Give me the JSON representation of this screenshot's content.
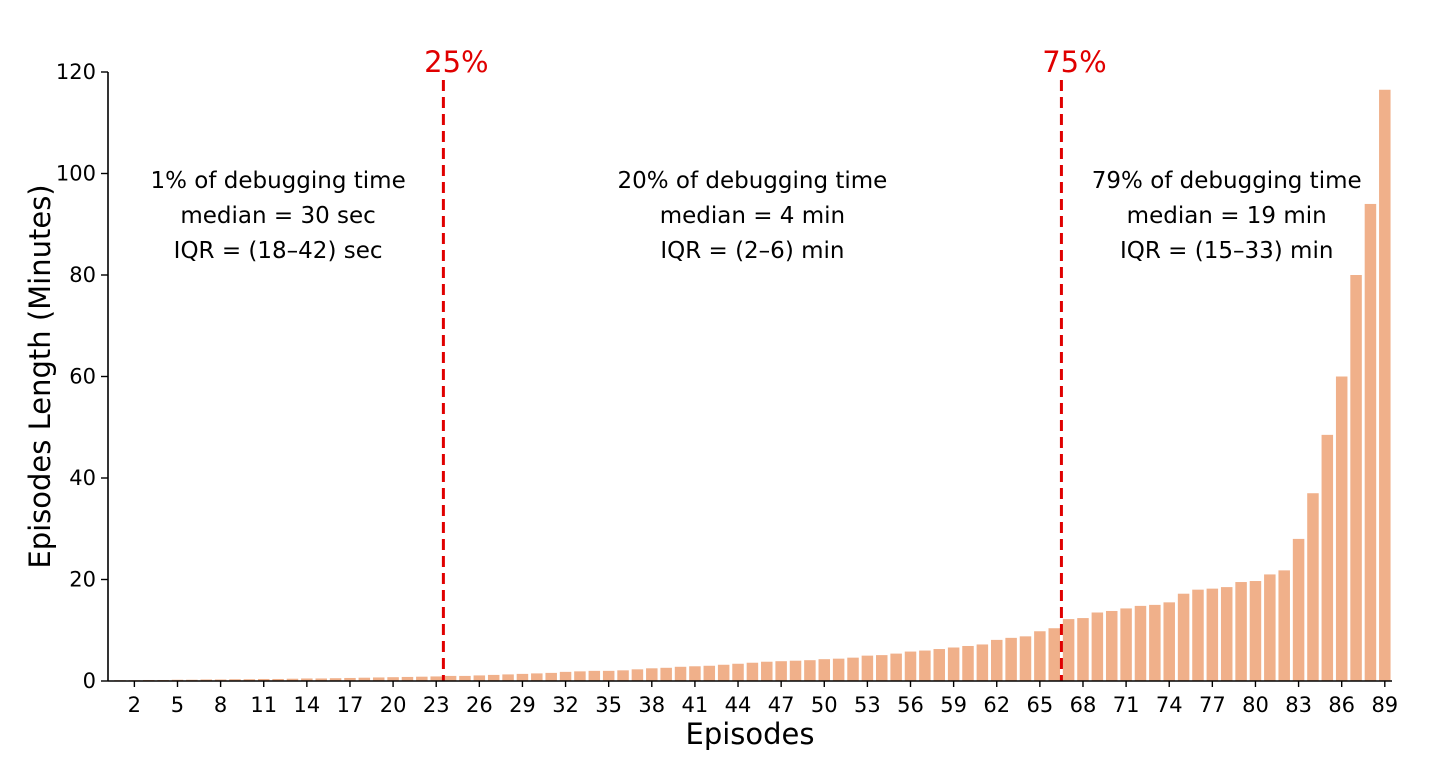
{
  "chart_data": {
    "type": "bar",
    "xlabel": "Episodes",
    "ylabel": "Episodes Length (Minutes)",
    "ylim": [
      0,
      120
    ],
    "yticks": [
      0,
      20,
      40,
      60,
      80,
      100,
      120
    ],
    "xticks": [
      2,
      5,
      8,
      11,
      14,
      17,
      20,
      23,
      26,
      29,
      32,
      35,
      38,
      41,
      44,
      47,
      50,
      53,
      56,
      59,
      62,
      65,
      68,
      71,
      74,
      77,
      80,
      83,
      86,
      89
    ],
    "bar_color": "#f0b08a",
    "episodes": [
      1,
      2,
      3,
      4,
      5,
      6,
      7,
      8,
      9,
      10,
      11,
      12,
      13,
      14,
      15,
      16,
      17,
      18,
      19,
      20,
      21,
      22,
      23,
      24,
      25,
      26,
      27,
      28,
      29,
      30,
      31,
      32,
      33,
      34,
      35,
      36,
      37,
      38,
      39,
      40,
      41,
      42,
      43,
      44,
      45,
      46,
      47,
      48,
      49,
      50,
      51,
      52,
      53,
      54,
      55,
      56,
      57,
      58,
      59,
      60,
      61,
      62,
      63,
      64,
      65,
      66,
      67,
      68,
      69,
      70,
      71,
      72,
      73,
      74,
      75,
      76,
      77,
      78,
      79,
      80,
      81,
      82,
      83,
      84,
      85,
      86,
      87,
      88,
      89
    ],
    "values": [
      0.1,
      0.15,
      0.2,
      0.2,
      0.25,
      0.25,
      0.3,
      0.3,
      0.35,
      0.35,
      0.4,
      0.4,
      0.45,
      0.5,
      0.5,
      0.55,
      0.6,
      0.65,
      0.7,
      0.75,
      0.8,
      0.85,
      0.9,
      1.0,
      1.0,
      1.1,
      1.2,
      1.3,
      1.4,
      1.5,
      1.6,
      1.8,
      1.9,
      2.0,
      2.0,
      2.1,
      2.3,
      2.5,
      2.6,
      2.8,
      2.9,
      3.0,
      3.2,
      3.4,
      3.6,
      3.8,
      3.9,
      4.0,
      4.1,
      4.3,
      4.4,
      4.6,
      5.0,
      5.1,
      5.4,
      5.8,
      6.0,
      6.3,
      6.6,
      6.9,
      7.2,
      8.1,
      8.5,
      8.8,
      9.8,
      10.4,
      12.2,
      12.4,
      13.5,
      13.8,
      14.3,
      14.8,
      15.0,
      15.5,
      17.2,
      18.0,
      18.2,
      18.5,
      19.5,
      19.7,
      21.0,
      21.8,
      28.0,
      37.0,
      48.5,
      60.0,
      80.0,
      94.0,
      116.5
    ],
    "markers": [
      {
        "label": "25%",
        "after_episode": 23,
        "color": "#e00000"
      },
      {
        "label": "75%",
        "after_episode": 66,
        "color": "#e00000"
      }
    ],
    "annotations": [
      {
        "lines": [
          "1% of debugging time",
          "median = 30 sec",
          "IQR = (18–42) sec"
        ],
        "center_episode": 12
      },
      {
        "lines": [
          "20% of debugging time",
          "median = 4 min",
          "IQR = (2–6) min"
        ],
        "center_episode": 45
      },
      {
        "lines": [
          "79% of debugging time",
          "median = 19 min",
          "IQR = (15–33) min"
        ],
        "center_episode": 78
      }
    ]
  }
}
